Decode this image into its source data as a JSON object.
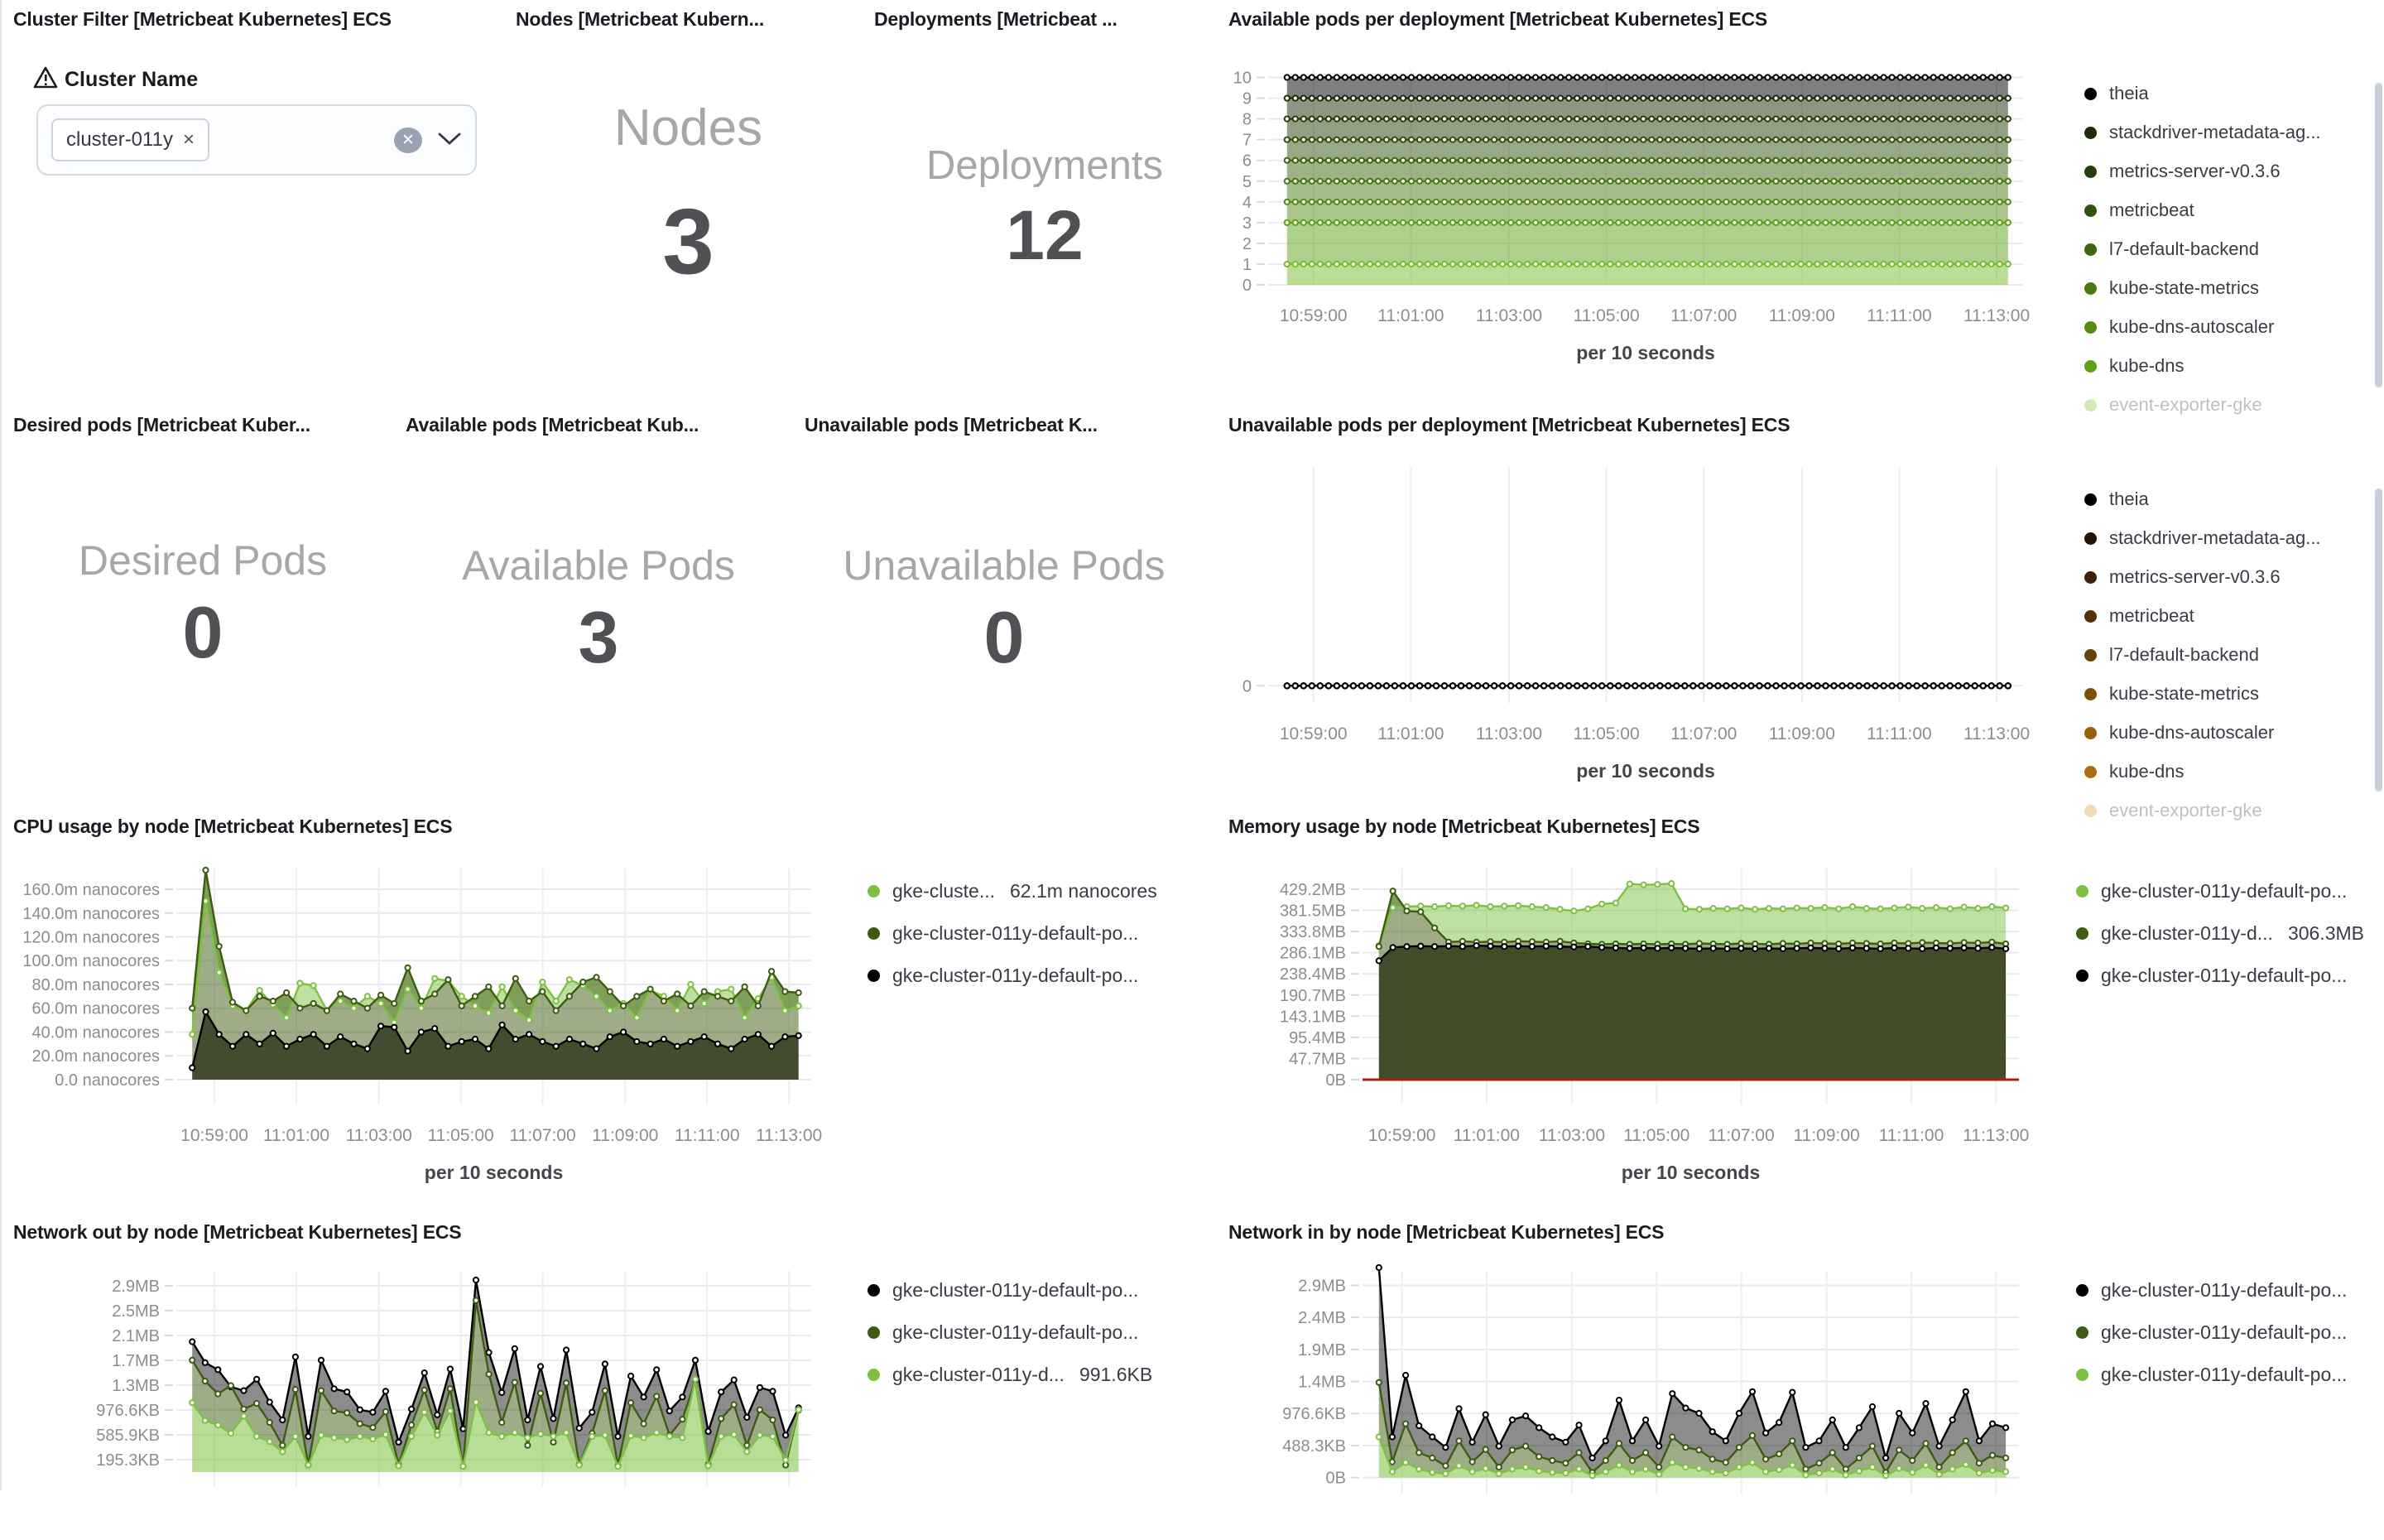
{
  "panels": {
    "cluster_filter": {
      "title": "Cluster Filter [Metricbeat Kubernetes] ECS",
      "field_label": "Cluster Name",
      "selected_value": "cluster-011y"
    },
    "nodes": {
      "title": "Nodes [Metricbeat Kubern...",
      "label": "Nodes",
      "value": "3"
    },
    "deployments": {
      "title": "Deployments [Metricbeat ...",
      "label": "Deployments",
      "value": "12"
    },
    "desired_pods": {
      "title": "Desired pods [Metricbeat Kuber...",
      "label": "Desired Pods",
      "value": "0"
    },
    "available_pods": {
      "title": "Available pods [Metricbeat Kub...",
      "label": "Available Pods",
      "value": "3"
    },
    "unavailable_pods": {
      "title": "Unavailable pods [Metricbeat K...",
      "label": "Unavailable Pods",
      "value": "0"
    }
  },
  "chart_data": [
    {
      "type": "area",
      "title": "Available pods per deployment [Metricbeat Kubernetes] ECS",
      "x_axis_title": "per 10 seconds",
      "x_ticks": [
        "10:59:00",
        "11:01:00",
        "11:03:00",
        "11:05:00",
        "11:07:00",
        "11:09:00",
        "11:11:00",
        "11:13:00"
      ],
      "n": 88,
      "ylim": [
        0,
        10.38
      ],
      "y_ticks": [
        {
          "v": 0,
          "label": "0"
        },
        {
          "v": 1,
          "label": "1"
        },
        {
          "v": 2,
          "label": "2"
        },
        {
          "v": 3,
          "label": "3"
        },
        {
          "v": 4,
          "label": "4"
        },
        {
          "v": 5,
          "label": "5"
        },
        {
          "v": 6,
          "label": "6"
        },
        {
          "v": 7,
          "label": "7"
        },
        {
          "v": 8,
          "label": "8"
        },
        {
          "v": 9,
          "label": "9"
        },
        {
          "v": 10,
          "label": "10"
        }
      ],
      "legend_scrollbar": true,
      "legend_fade_last": true,
      "series": [
        {
          "name": "theia",
          "color": "#000000",
          "constant": 10
        },
        {
          "name": "stackdriver-metadata-ag...",
          "color": "#1c2d08",
          "constant": 9
        },
        {
          "name": "metrics-server-v0.3.6",
          "color": "#27400b",
          "constant": 8
        },
        {
          "name": "metricbeat",
          "color": "#32530e",
          "constant": 7
        },
        {
          "name": "l7-default-backend",
          "color": "#3d6610",
          "constant": 6
        },
        {
          "name": "kube-state-metrics",
          "color": "#497a13",
          "constant": 5
        },
        {
          "name": "kube-dns-autoscaler",
          "color": "#548d16",
          "constant": 4
        },
        {
          "name": "kube-dns",
          "color": "#5fa019",
          "constant": 3
        },
        {
          "name": "event-exporter-gke",
          "color": "#76bd2c",
          "constant": 1
        }
      ]
    },
    {
      "type": "area",
      "title": "Unavailable pods per deployment [Metricbeat Kubernetes] ECS",
      "x_axis_title": "per 10 seconds",
      "x_ticks": [
        "10:59:00",
        "11:01:00",
        "11:03:00",
        "11:05:00",
        "11:07:00",
        "11:09:00",
        "11:11:00",
        "11:13:00"
      ],
      "n": 88,
      "ylim": [
        -0.08,
        1.02
      ],
      "y_ticks": [
        {
          "v": 0,
          "label": "0"
        }
      ],
      "legend_scrollbar": true,
      "legend_fade_last": true,
      "draw_reverse": true,
      "series": [
        {
          "name": "theia",
          "color": "#000000",
          "constant": 0
        },
        {
          "name": "stackdriver-metadata-ag...",
          "color": "#241402",
          "constant": 0
        },
        {
          "name": "metrics-server-v0.3.6",
          "color": "#3a2304",
          "constant": 0
        },
        {
          "name": "metricbeat",
          "color": "#513205",
          "constant": 0
        },
        {
          "name": "l7-default-backend",
          "color": "#684108",
          "constant": 0
        },
        {
          "name": "kube-state-metrics",
          "color": "#7e500a",
          "constant": 0
        },
        {
          "name": "kube-dns-autoscaler",
          "color": "#955f0c",
          "constant": 0
        },
        {
          "name": "kube-dns",
          "color": "#ab6e0e",
          "constant": 0
        },
        {
          "name": "event-exporter-gke",
          "color": "#cf9033",
          "constant": 0
        }
      ]
    },
    {
      "type": "area",
      "title": "CPU usage by node [Metricbeat Kubernetes] ECS",
      "x_axis_title": "per 10 seconds",
      "x_ticks": [
        "10:59:00",
        "11:01:00",
        "11:03:00",
        "11:05:00",
        "11:07:00",
        "11:09:00",
        "11:11:00",
        "11:13:00"
      ],
      "n": 46,
      "ylim": [
        -20.9,
        177.4
      ],
      "y_ticks": [
        {
          "v": 0,
          "label": "0.0 nanocores"
        },
        {
          "v": 20,
          "label": "20.0m nanocores"
        },
        {
          "v": 40,
          "label": "40.0m nanocores"
        },
        {
          "v": 60,
          "label": "60.0m nanocores"
        },
        {
          "v": 80,
          "label": "80.0m nanocores"
        },
        {
          "v": 100,
          "label": "100.0m nanocores"
        },
        {
          "v": 120,
          "label": "120.0m nanocores"
        },
        {
          "v": 140,
          "label": "140.0m nanocores"
        },
        {
          "v": 160,
          "label": "160.0m nanocores"
        }
      ],
      "series": [
        {
          "name": "gke-cluste...",
          "value_label": "62.1m nanocores",
          "color": "#7ec142",
          "values": [
            38,
            150,
            90,
            62,
            58,
            75,
            63,
            52,
            81,
            79,
            58,
            66,
            60,
            70,
            64,
            48,
            76,
            60,
            85,
            83,
            70,
            62,
            56,
            78,
            58,
            50,
            82,
            66,
            84,
            79,
            70,
            58,
            64,
            52,
            75,
            70,
            58,
            80,
            64,
            74,
            76,
            52,
            68,
            86,
            58,
            62
          ]
        },
        {
          "name": "gke-cluster-011y-default-po...",
          "color": "#3e5c11",
          "values": [
            60,
            176,
            112,
            65,
            58,
            70,
            66,
            73,
            60,
            64,
            58,
            72,
            66,
            60,
            71,
            64,
            94,
            66,
            72,
            84,
            62,
            70,
            78,
            62,
            85,
            66,
            74,
            58,
            70,
            82,
            86,
            74,
            62,
            70,
            76,
            66,
            72,
            62,
            74,
            70,
            66,
            78,
            62,
            91,
            74,
            73
          ]
        },
        {
          "name": "gke-cluster-011y-default-po...",
          "color": "#000000",
          "band_color": "#333d1d",
          "band_opacity": 0.92,
          "values": [
            10,
            57,
            38,
            28,
            38,
            30,
            39,
            28,
            34,
            38,
            28,
            36,
            30,
            26,
            45,
            44,
            24,
            40,
            43,
            28,
            32,
            34,
            26,
            46,
            34,
            38,
            32,
            28,
            34,
            30,
            26,
            36,
            40,
            32,
            30,
            34,
            28,
            32,
            36,
            30,
            26,
            34,
            38,
            28,
            36,
            37
          ]
        }
      ]
    },
    {
      "type": "area",
      "title": "Memory usage by node [Metricbeat Kubernetes] ECS",
      "x_axis_title": "per 10 seconds",
      "x_ticks": [
        "10:59:00",
        "11:01:00",
        "11:03:00",
        "11:05:00",
        "11:07:00",
        "11:09:00",
        "11:11:00",
        "11:13:00"
      ],
      "n": 46,
      "ylim": [
        -56,
        475.8
      ],
      "zero_line": "#a8230d",
      "y_ticks": [
        {
          "v": 0,
          "label": "0B"
        },
        {
          "v": 47.7,
          "label": "47.7MB"
        },
        {
          "v": 95.4,
          "label": "95.4MB"
        },
        {
          "v": 143.1,
          "label": "143.1MB"
        },
        {
          "v": 190.7,
          "label": "190.7MB"
        },
        {
          "v": 238.4,
          "label": "238.4MB"
        },
        {
          "v": 286.1,
          "label": "286.1MB"
        },
        {
          "v": 333.8,
          "label": "333.8MB"
        },
        {
          "v": 381.5,
          "label": "381.5MB"
        },
        {
          "v": 429.2,
          "label": "429.2MB"
        }
      ],
      "series": [
        {
          "name": "gke-cluster-011y-default-po...",
          "color": "#7ec142",
          "values": [
            302,
            388,
            390,
            391,
            390,
            392,
            391,
            393,
            390,
            391,
            392,
            390,
            388,
            384,
            380,
            385,
            396,
            398,
            441,
            439,
            440,
            442,
            385,
            384,
            386,
            385,
            387,
            384,
            386,
            385,
            387,
            386,
            388,
            385,
            390,
            386,
            385,
            387,
            389,
            386,
            388,
            385,
            389,
            386,
            390,
            387
          ]
        },
        {
          "name": "gke-cluster-011y-d...",
          "value_label": "306.3MB",
          "color": "#3e5c11",
          "values": [
            300,
            425,
            380,
            378,
            342,
            310,
            312,
            310,
            311,
            310,
            312,
            311,
            310,
            312,
            308,
            306,
            305,
            306,
            305,
            306,
            305,
            306,
            305,
            307,
            306,
            305,
            307,
            306,
            305,
            307,
            306,
            308,
            307,
            306,
            308,
            307,
            306,
            308,
            307,
            309,
            308,
            307,
            309,
            308,
            310,
            306
          ]
        },
        {
          "name": "gke-cluster-011y-default-po...",
          "color": "#000000",
          "band_color": "#36421d",
          "band_opacity": 0.94,
          "values": [
            268,
            298,
            300,
            301,
            300,
            301,
            300,
            302,
            301,
            300,
            301,
            300,
            301,
            300,
            299,
            300,
            298,
            297,
            296,
            297,
            296,
            297,
            296,
            295,
            296,
            295,
            296,
            295,
            296,
            295,
            296,
            297,
            296,
            295,
            297,
            296,
            295,
            297,
            296,
            295,
            297,
            296,
            297,
            296,
            298,
            295
          ]
        }
      ]
    },
    {
      "type": "area",
      "title": "Network out by node [Metricbeat Kubernetes] ECS",
      "n": 48,
      "ylim": [
        -222,
        3163
      ],
      "y_ticks": [
        {
          "v": 195.3,
          "label": "195.3KB"
        },
        {
          "v": 585.9,
          "label": "585.9KB"
        },
        {
          "v": 976.6,
          "label": "976.6KB"
        },
        {
          "v": 1367.2,
          "label": "1.3MB"
        },
        {
          "v": 1757.8,
          "label": "1.7MB"
        },
        {
          "v": 2148.4,
          "label": "2.1MB"
        },
        {
          "v": 2539.0,
          "label": "2.5MB"
        },
        {
          "v": 2929.6,
          "label": "2.9MB"
        }
      ],
      "series": [
        {
          "name": "gke-cluster-011y-default-po...",
          "color": "#000000",
          "band_opacity": 0.45,
          "values": [
            2050,
            1720,
            1610,
            1340,
            1280,
            1460,
            1100,
            820,
            1810,
            560,
            1760,
            1310,
            1260,
            980,
            940,
            1270,
            470,
            990,
            1560,
            900,
            1620,
            680,
            3020,
            1880,
            1250,
            1940,
            820,
            1660,
            840,
            1920,
            690,
            940,
            1700,
            560,
            1510,
            1180,
            1610,
            960,
            1180,
            1760,
            640,
            1260,
            1450,
            860,
            1330,
            1270,
            580,
            1010
          ]
        },
        {
          "name": "gke-cluster-011y-default-po...",
          "color": "#3e5c11",
          "values": [
            1760,
            1430,
            1230,
            1360,
            990,
            1080,
            780,
            420,
            1300,
            110,
            1280,
            960,
            930,
            760,
            700,
            950,
            120,
            740,
            1290,
            640,
            1310,
            90,
            2700,
            1540,
            780,
            1410,
            420,
            1240,
            470,
            1400,
            120,
            610,
            1280,
            100,
            1090,
            760,
            1190,
            580,
            830,
            1440,
            120,
            840,
            1060,
            420,
            980,
            820,
            110,
            970
          ]
        },
        {
          "name": "gke-cluster-011y-d...",
          "value_label": "991.6KB",
          "color": "#7ec142",
          "band_opacity": 0.55,
          "values": [
            1090,
            810,
            740,
            610,
            880,
            560,
            480,
            320,
            560,
            110,
            580,
            540,
            510,
            560,
            520,
            590,
            100,
            560,
            940,
            580,
            960,
            90,
            1100,
            620,
            560,
            620,
            540,
            600,
            560,
            620,
            110,
            560,
            580,
            90,
            570,
            540,
            620,
            560,
            540,
            1460,
            100,
            560,
            590,
            320,
            580,
            560,
            190,
            980
          ]
        }
      ]
    },
    {
      "type": "area",
      "title": "Network in by node [Metricbeat Kubernetes] ECS",
      "n": 48,
      "ylim": [
        -257,
        3150
      ],
      "y_ticks": [
        {
          "v": 0,
          "label": "0B"
        },
        {
          "v": 488.3,
          "label": "488.3KB"
        },
        {
          "v": 976.6,
          "label": "976.6KB"
        },
        {
          "v": 1464.9,
          "label": "1.4MB"
        },
        {
          "v": 1953.2,
          "label": "1.9MB"
        },
        {
          "v": 2441.5,
          "label": "2.4MB"
        },
        {
          "v": 2929.8,
          "label": "2.9MB"
        }
      ],
      "series": [
        {
          "name": "gke-cluster-011y-default-po...",
          "color": "#000000",
          "band_opacity": 0.45,
          "values": [
            3200,
            620,
            1560,
            790,
            620,
            460,
            1050,
            540,
            960,
            480,
            880,
            940,
            760,
            620,
            540,
            800,
            300,
            560,
            1180,
            560,
            880,
            480,
            1280,
            1060,
            980,
            700,
            560,
            980,
            1310,
            680,
            840,
            1300,
            460,
            560,
            880,
            460,
            760,
            1080,
            300,
            980,
            680,
            1130,
            480,
            880,
            1310,
            560,
            820,
            760
          ]
        },
        {
          "name": "gke-cluster-011y-default-po...",
          "color": "#3e5c11",
          "values": [
            1450,
            240,
            820,
            380,
            300,
            180,
            560,
            240,
            430,
            160,
            420,
            480,
            320,
            260,
            220,
            380,
            80,
            260,
            520,
            260,
            380,
            160,
            620,
            460,
            420,
            280,
            230,
            460,
            640,
            280,
            360,
            560,
            130,
            220,
            380,
            130,
            300,
            480,
            80,
            420,
            260,
            520,
            160,
            380,
            560,
            220,
            340,
            300
          ]
        },
        {
          "name": "gke-cluster-011y-default-po...",
          "color": "#7ec142",
          "band_opacity": 0.55,
          "values": [
            620,
            90,
            230,
            130,
            80,
            60,
            180,
            90,
            140,
            60,
            130,
            160,
            100,
            80,
            70,
            130,
            30,
            90,
            190,
            90,
            130,
            50,
            230,
            160,
            140,
            90,
            70,
            160,
            230,
            90,
            120,
            190,
            40,
            70,
            130,
            40,
            100,
            160,
            30,
            140,
            80,
            190,
            50,
            130,
            200,
            70,
            110,
            90
          ]
        }
      ]
    }
  ]
}
